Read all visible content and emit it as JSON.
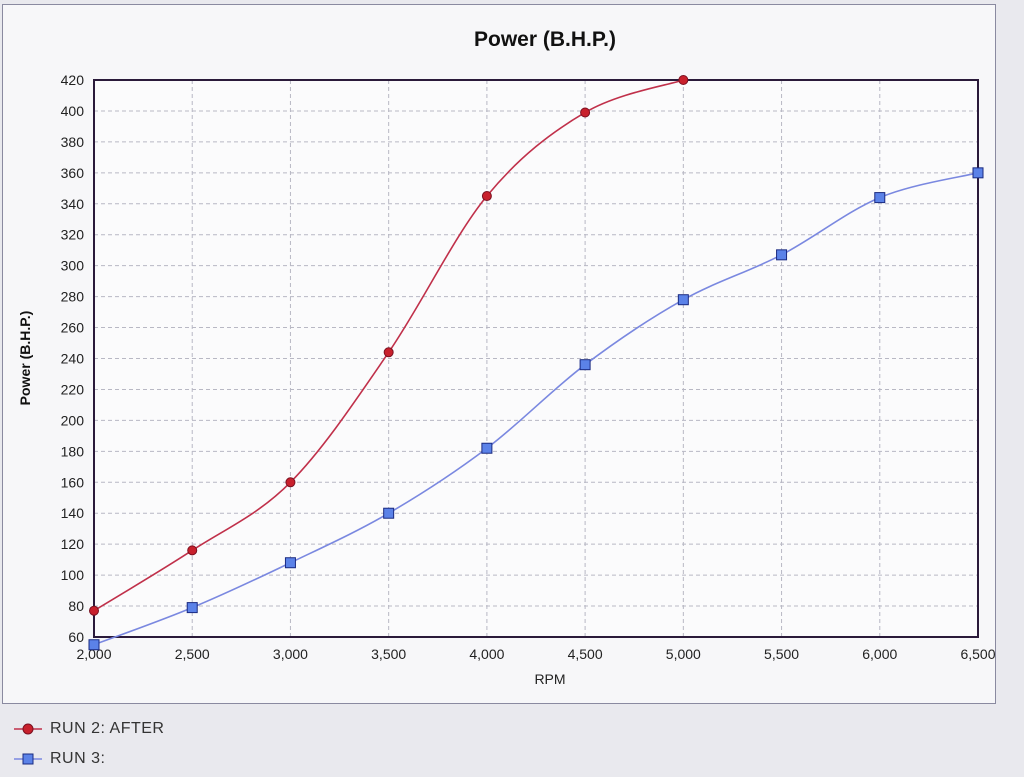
{
  "chart_data": {
    "type": "line",
    "title": "Power (B.H.P.)",
    "xlabel": "RPM",
    "ylabel": "Power (B.H.P.)",
    "xlim": [
      2000,
      6500
    ],
    "ylim": [
      60,
      420
    ],
    "x_ticks": [
      2000,
      2500,
      3000,
      3500,
      4000,
      4500,
      5000,
      5500,
      6000,
      6500
    ],
    "x_tick_labels": [
      "2,000",
      "2,500",
      "3,000",
      "3,500",
      "4,000",
      "4,500",
      "5,000",
      "5,500",
      "6,000",
      "6,500"
    ],
    "y_ticks": [
      60,
      80,
      100,
      120,
      140,
      160,
      180,
      200,
      220,
      240,
      260,
      280,
      300,
      320,
      340,
      360,
      380,
      400,
      420
    ],
    "grid": true,
    "legend_position": "bottom-left",
    "series": [
      {
        "name": "RUN 2: AFTER",
        "color": "#c0304a",
        "marker": "circle",
        "x": [
          2000,
          2500,
          3000,
          3500,
          4000,
          4500,
          5000
        ],
        "y": [
          77,
          116,
          160,
          244,
          345,
          399,
          420
        ]
      },
      {
        "name": "RUN 3:",
        "color": "#7a88e0",
        "marker": "square",
        "x": [
          2000,
          2500,
          3000,
          3500,
          4000,
          4500,
          5000,
          5500,
          6000,
          6500
        ],
        "y": [
          55,
          79,
          108,
          140,
          182,
          236,
          278,
          307,
          344,
          360
        ]
      }
    ]
  }
}
